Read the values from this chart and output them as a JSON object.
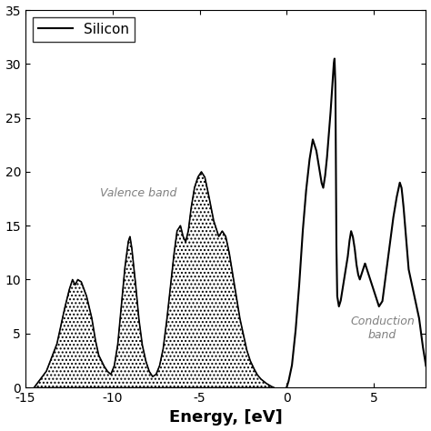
{
  "xlabel": "Energy, [eV]",
  "xlim": [
    -15,
    8
  ],
  "ylim": [
    0,
    35
  ],
  "yticks": [
    0,
    5,
    10,
    15,
    20,
    25,
    30,
    35
  ],
  "xticks": [
    -15,
    -10,
    -5,
    0,
    5
  ],
  "legend_label": "Silicon",
  "valence_band_label": "Valence band",
  "conduction_band_label": "Conduction\nband",
  "line_color": "#000000",
  "hatch_pattern": "....",
  "hatch_color": "#000000",
  "fill_facecolor": "white"
}
